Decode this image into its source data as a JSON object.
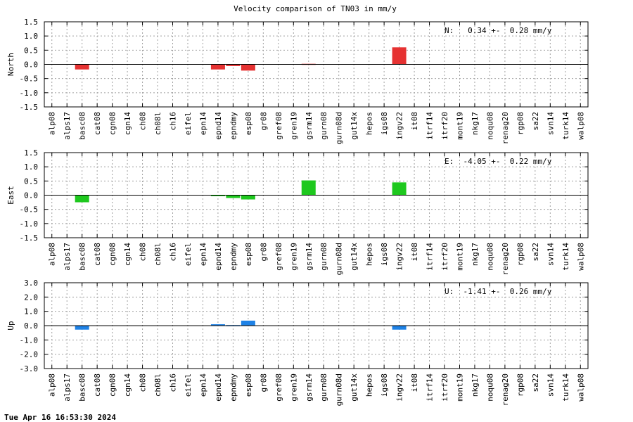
{
  "title": "Velocity comparison of TN03 in mm/y",
  "footer_timestamp": "Tue Apr 16 16:53:30 2024",
  "chart_data": [
    {
      "type": "bar",
      "ylabel": "North",
      "ylim": [
        -1.5,
        1.5
      ],
      "yticks": [
        "1.5",
        "1.0",
        "0.5",
        "0.0",
        "-0.5",
        "-1.0",
        "-1.5"
      ],
      "ytick_values": [
        1.5,
        1.0,
        0.5,
        0.0,
        -0.5,
        -1.0,
        -1.5
      ],
      "grid": true,
      "annotation": "N:   0.34 +-  0.28 mm/y",
      "color": "#e63232",
      "categories": [
        "alp08",
        "alps17",
        "basc08",
        "cat08",
        "cgn08",
        "cgn14",
        "ch08",
        "ch08l",
        "ch16",
        "eifel",
        "epn14",
        "epnd14",
        "epndmy",
        "esp08",
        "gr08",
        "gref08",
        "gren19",
        "gsrm14",
        "gurn08",
        "gurn08d",
        "gut14x",
        "hepos",
        "igs08",
        "ingv22",
        "it08",
        "itrf14",
        "itrf20",
        "mont19",
        "nkg17",
        "noqu08",
        "renag20",
        "rgp08",
        "sa22",
        "svn14",
        "turk14",
        "walp08"
      ],
      "values": [
        0,
        0,
        -0.18,
        0,
        0,
        0,
        0,
        0,
        0,
        0,
        0,
        -0.18,
        -0.06,
        -0.22,
        0,
        0,
        0,
        0.02,
        0,
        0,
        0,
        0,
        0,
        0.6,
        0,
        0,
        0,
        0,
        0,
        0,
        0,
        0,
        0,
        0,
        0,
        0
      ]
    },
    {
      "type": "bar",
      "ylabel": "East",
      "ylim": [
        -1.5,
        1.5
      ],
      "yticks": [
        "1.5",
        "1.0",
        "0.5",
        "0.0",
        "-0.5",
        "-1.0",
        "-1.5"
      ],
      "ytick_values": [
        1.5,
        1.0,
        0.5,
        0.0,
        -0.5,
        -1.0,
        -1.5
      ],
      "grid": true,
      "annotation": "E:  -4.05 +-  0.22 mm/y",
      "color": "#1ec81e",
      "categories": [
        "alp08",
        "alps17",
        "basc08",
        "cat08",
        "cgn08",
        "cgn14",
        "ch08",
        "ch08l",
        "ch16",
        "eifel",
        "epn14",
        "epnd14",
        "epndmy",
        "esp08",
        "gr08",
        "gref08",
        "gren19",
        "gsrm14",
        "gurn08",
        "gurn08d",
        "gut14x",
        "hepos",
        "igs08",
        "ingv22",
        "it08",
        "itrf14",
        "itrf20",
        "mont19",
        "nkg17",
        "noqu08",
        "renag20",
        "rgp08",
        "sa22",
        "svn14",
        "turk14",
        "walp08"
      ],
      "values": [
        0,
        0,
        -0.25,
        0,
        0,
        0,
        0,
        0,
        0,
        0,
        0,
        -0.03,
        -0.1,
        -0.15,
        0,
        0,
        0,
        0.52,
        0,
        0,
        0,
        0,
        0,
        0.45,
        0,
        0,
        0,
        0,
        0,
        0,
        0,
        0,
        0,
        0,
        0,
        0
      ]
    },
    {
      "type": "bar",
      "ylabel": "Up",
      "ylim": [
        -3.0,
        3.0
      ],
      "yticks": [
        "3.0",
        "2.0",
        "1.0",
        "0.0",
        "-1.0",
        "-2.0",
        "-3.0"
      ],
      "ytick_values": [
        3.0,
        2.0,
        1.0,
        0.0,
        -1.0,
        -2.0,
        -3.0
      ],
      "grid": true,
      "annotation": "U:  -1.41 +-  0.26 mm/y",
      "color": "#1e82e6",
      "categories": [
        "alp08",
        "alps17",
        "basc08",
        "cat08",
        "cgn08",
        "cgn14",
        "ch08",
        "ch08l",
        "ch16",
        "eifel",
        "epn14",
        "epnd14",
        "epndmy",
        "esp08",
        "gr08",
        "gref08",
        "gren19",
        "gsrm14",
        "gurn08",
        "gurn08d",
        "gut14x",
        "hepos",
        "igs08",
        "ingv22",
        "it08",
        "itrf14",
        "itrf20",
        "mont19",
        "nkg17",
        "noqu08",
        "renag20",
        "rgp08",
        "sa22",
        "svn14",
        "turk14",
        "walp08"
      ],
      "values": [
        0,
        0,
        -0.28,
        0,
        0,
        0,
        0,
        0,
        0,
        0,
        0,
        0.1,
        0.04,
        0.35,
        0,
        0,
        0,
        0,
        0,
        0,
        0,
        0,
        0,
        -0.28,
        0,
        0,
        0,
        0,
        0,
        0,
        0,
        0,
        0,
        0,
        0,
        0
      ]
    }
  ]
}
